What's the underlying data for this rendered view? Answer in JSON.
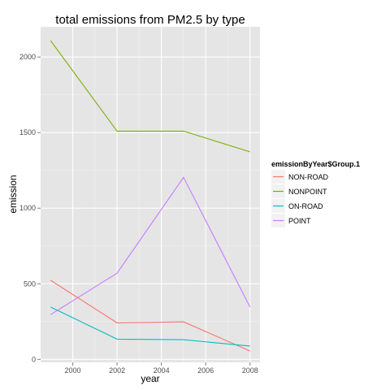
{
  "chart_data": {
    "type": "line",
    "title": "total emissions from PM2.5 by type",
    "xlabel": "year",
    "ylabel": "emission",
    "x": [
      1999,
      2002,
      2005,
      2008
    ],
    "xlim": [
      1998.55,
      2008.45
    ],
    "ylim": [
      -20,
      2200
    ],
    "x_ticks": [
      2000,
      2002,
      2004,
      2006,
      2008
    ],
    "y_ticks": [
      0,
      500,
      1000,
      1500,
      2000
    ],
    "grid": true,
    "legend": {
      "title": "emissionByYear$Group.1",
      "placement": "right"
    },
    "series": [
      {
        "name": "NON-ROAD",
        "color": "#F8766D",
        "values": [
          523,
          241,
          248,
          55
        ]
      },
      {
        "name": "NONPOINT",
        "color": "#7CAE00",
        "values": [
          2108,
          1510,
          1510,
          1373
        ]
      },
      {
        "name": "ON-ROAD",
        "color": "#00BFC4",
        "values": [
          346,
          134,
          130,
          88
        ]
      },
      {
        "name": "POINT",
        "color": "#C77CFF",
        "values": [
          296,
          570,
          1204,
          346
        ]
      }
    ]
  }
}
